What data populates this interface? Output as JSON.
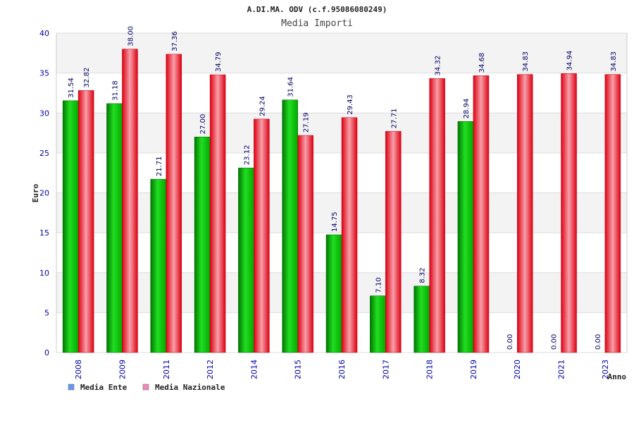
{
  "chart_data": {
    "type": "bar",
    "title": "A.DI.MA. ODV (c.f.95086080249)",
    "subtitle": "Media Importi",
    "ylabel": "Euro",
    "xlabel": "Anno",
    "ylim": [
      0,
      40
    ],
    "yticks": [
      0,
      5,
      10,
      15,
      20,
      25,
      30,
      35,
      40
    ],
    "grid": true,
    "legend_position": "bottom-left",
    "categories": [
      "2008",
      "2009",
      "2011",
      "2012",
      "2014",
      "2015",
      "2016",
      "2017",
      "2018",
      "2019",
      "2020",
      "2021",
      "2023"
    ],
    "series": [
      {
        "name": "Media Ente",
        "legend_color": "#6699ee",
        "bar_color": "#00bb00",
        "values": [
          31.54,
          31.18,
          21.71,
          27.0,
          23.12,
          31.64,
          14.75,
          7.1,
          8.32,
          28.94,
          0.0,
          0.0,
          0.0
        ],
        "labels": [
          "31.54",
          "31.18",
          "21.71",
          "27.00",
          "23.12",
          "31.64",
          "14.75",
          "7.10",
          "8.32",
          "28.94",
          "0.00",
          "0.00",
          "0.00"
        ]
      },
      {
        "name": "Media Nazionale",
        "legend_color": "#ee88bb",
        "bar_color": "#ee1122",
        "values": [
          32.82,
          38.0,
          37.36,
          34.79,
          29.24,
          27.19,
          29.43,
          27.71,
          34.32,
          34.68,
          34.83,
          34.94,
          34.83
        ],
        "labels": [
          "32.82",
          "38.00",
          "37.36",
          "34.79",
          "29.24",
          "27.19",
          "29.43",
          "27.71",
          "34.32",
          "34.68",
          "34.83",
          "34.94",
          "34.83"
        ]
      }
    ]
  }
}
